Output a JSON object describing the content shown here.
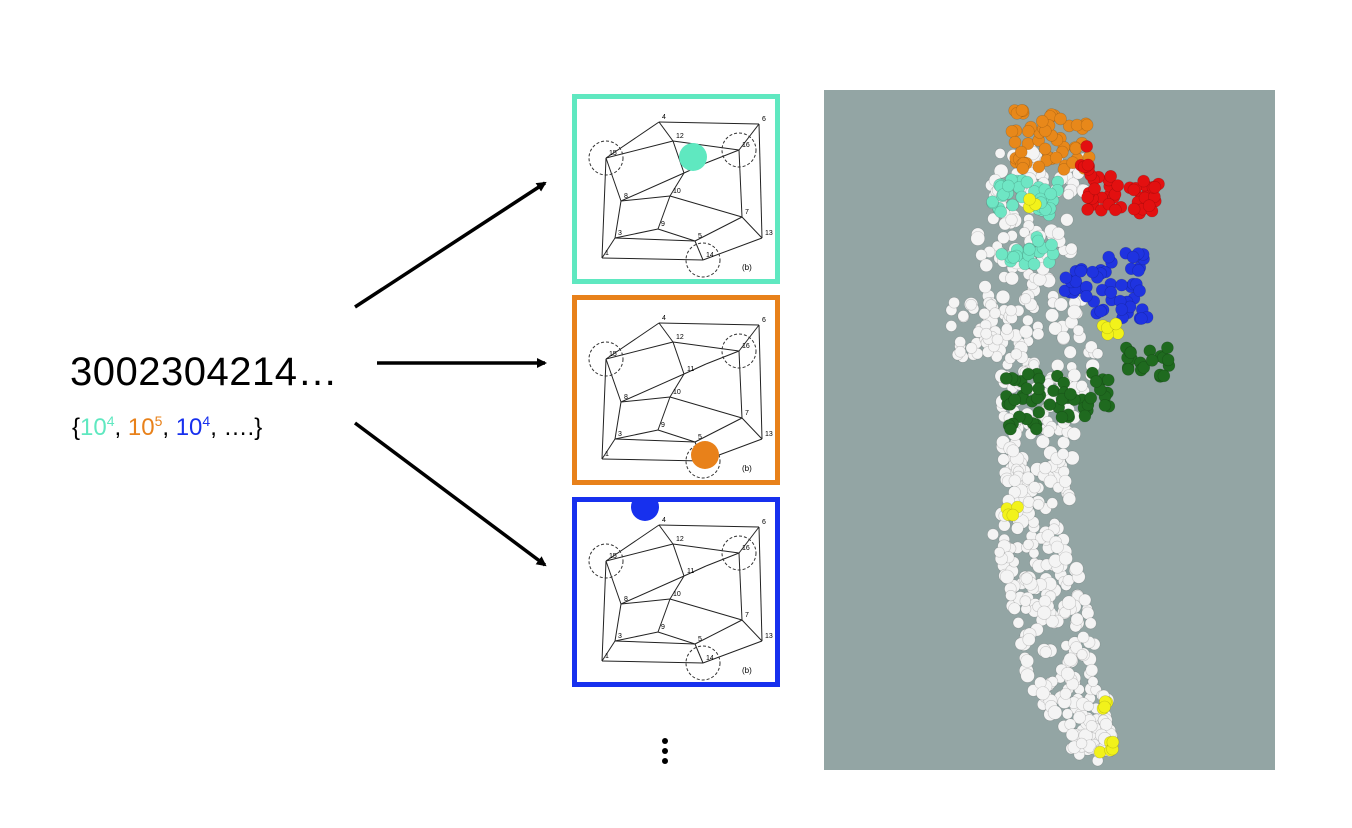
{
  "sequence": "3002304214…",
  "set": {
    "open": "{",
    "items": [
      {
        "base": "10",
        "exp": "4",
        "color": "#5fe8c0",
        "sep": ", "
      },
      {
        "base": "10",
        "exp": "5",
        "color": "#e8811a",
        "sep": ", "
      },
      {
        "base": "10",
        "exp": "4",
        "color": "#1730ee",
        "sep": ", "
      }
    ],
    "tail": "….}"
  },
  "panels": [
    {
      "name": "panel-cyan",
      "border": "#5fe8c0",
      "marker_node": "12"
    },
    {
      "name": "panel-orange",
      "border": "#e8811a",
      "marker_node": "14"
    },
    {
      "name": "panel-blue",
      "border": "#1730ee",
      "marker_node": "4"
    }
  ],
  "cube_labels": [
    "1",
    "3",
    "4",
    "5",
    "6",
    "7",
    "8",
    "9",
    "10",
    "11",
    "12",
    "13",
    "14",
    "15",
    "16"
  ],
  "cube_caption": "(b)",
  "protein_colors": {
    "background": "#93a5a4",
    "body": "#f4f4f4",
    "orange": "#e8881a",
    "red": "#e31010",
    "cyan": "#6ee6c4",
    "blue": "#1f33e0",
    "green": "#1f6a1f",
    "yellow": "#f2f21a"
  }
}
